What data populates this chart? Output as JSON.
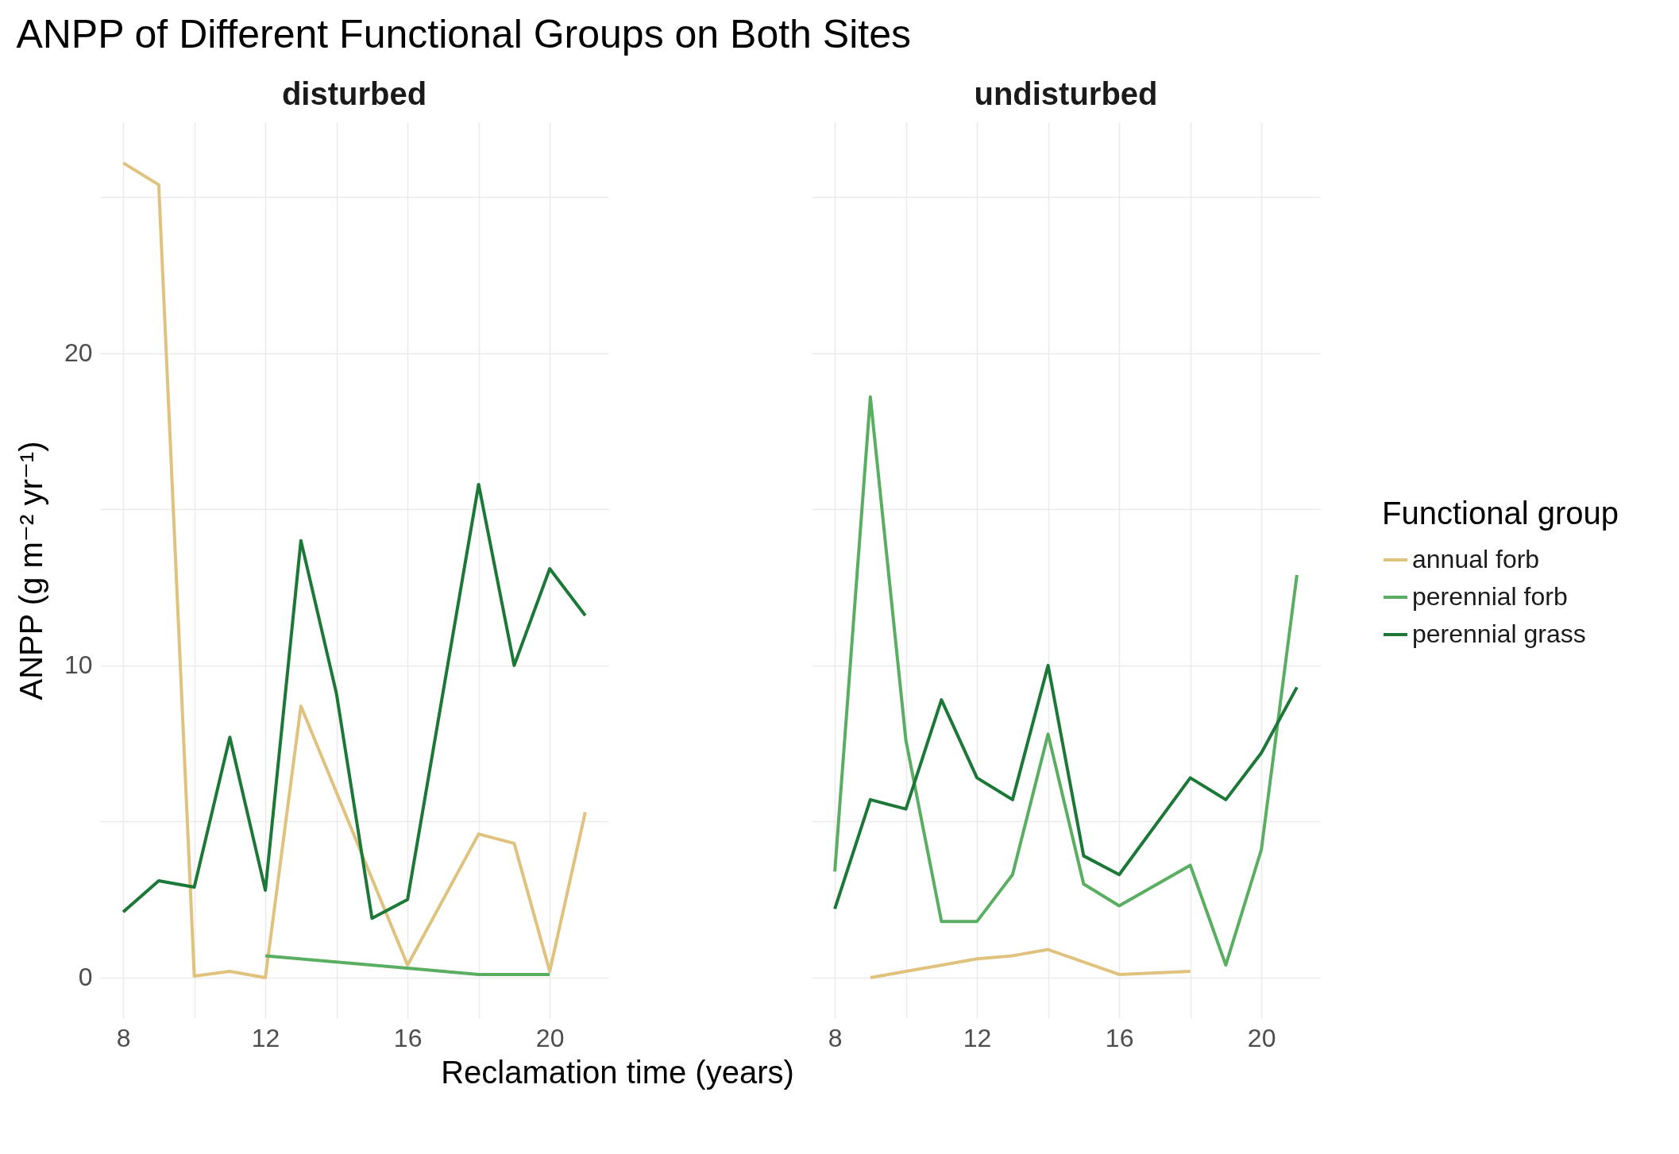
{
  "chart_data": [
    {
      "type": "line",
      "title": "ANPP of Different Functional Groups on Both Sites",
      "subtitle": "disturbed",
      "xlabel": "Reclamation time (years)",
      "ylabel": "ANPP (g m⁻² yr⁻¹)",
      "xlim": [
        7.35,
        21.65
      ],
      "xticks": [
        8,
        {
          "value": 10,
          "label": null
        },
        12,
        {
          "value": 14,
          "label": null
        },
        16,
        {
          "value": 18,
          "label": null
        },
        20
      ],
      "ylim": [
        -1.3,
        27.4
      ],
      "yticks": [
        0,
        {
          "value": 5,
          "label": null
        },
        10,
        {
          "value": 15,
          "label": null
        },
        20,
        {
          "value": 25,
          "label": null
        }
      ],
      "grid": true,
      "legend": "right",
      "legend_title": "Functional group",
      "series": [
        {
          "name": "annual forb",
          "color": "#dfc27d",
          "x": [
            8,
            9,
            10,
            11,
            12,
            13,
            16,
            18,
            19,
            20,
            21
          ],
          "values": [
            26.1,
            25.4,
            0.05,
            0.2,
            0,
            8.7,
            0.4,
            4.6,
            4.3,
            0.2,
            5.3
          ]
        },
        {
          "name": "perennial forb",
          "color": "#5aae61",
          "x": [
            12,
            16,
            18,
            20
          ],
          "values": [
            0.7,
            0.3,
            0.1,
            0.1
          ]
        },
        {
          "name": "perennial grass",
          "color": "#1b7837",
          "x": [
            8,
            9,
            10,
            11,
            12,
            13,
            14,
            15,
            16,
            18,
            19,
            20,
            21
          ],
          "values": [
            2.1,
            3.1,
            2.9,
            7.7,
            2.8,
            14.0,
            9.1,
            1.9,
            2.5,
            15.8,
            10.0,
            13.1,
            11.6
          ]
        }
      ]
    },
    {
      "type": "line",
      "subtitle": "undisturbed",
      "xlim": [
        7.35,
        21.65
      ],
      "xticks": [
        8,
        {
          "value": 10,
          "label": null
        },
        12,
        {
          "value": 14,
          "label": null
        },
        16,
        {
          "value": 18,
          "label": null
        },
        20
      ],
      "ylim": [
        -1.3,
        27.4
      ],
      "yticks": [
        0,
        {
          "value": 5,
          "label": null
        },
        10,
        {
          "value": 15,
          "label": null
        },
        20,
        {
          "value": 25,
          "label": null
        }
      ],
      "grid": true,
      "tick_labels": "x",
      "series": [
        {
          "name": "annual forb",
          "color": "#dfc27d",
          "x": [
            9,
            10,
            11,
            12,
            13,
            14,
            16,
            18
          ],
          "values": [
            0,
            0.2,
            0.4,
            0.6,
            0.7,
            0.9,
            0.1,
            0.2
          ]
        },
        {
          "name": "perennial forb",
          "color": "#5aae61",
          "x": [
            8,
            9,
            10,
            11,
            12,
            13,
            14,
            15,
            16,
            18,
            19,
            20,
            21
          ],
          "values": [
            3.4,
            18.6,
            7.6,
            1.8,
            1.8,
            3.3,
            7.8,
            3.0,
            2.3,
            3.6,
            0.4,
            4.1,
            12.9
          ]
        },
        {
          "name": "perennial grass",
          "color": "#1b7837",
          "x": [
            8,
            9,
            10,
            11,
            12,
            13,
            14,
            15,
            16,
            18,
            19,
            20,
            21
          ],
          "values": [
            2.2,
            5.7,
            5.4,
            8.9,
            6.4,
            5.7,
            10.0,
            3.9,
            3.3,
            6.4,
            5.7,
            7.2,
            9.3
          ]
        }
      ]
    }
  ]
}
